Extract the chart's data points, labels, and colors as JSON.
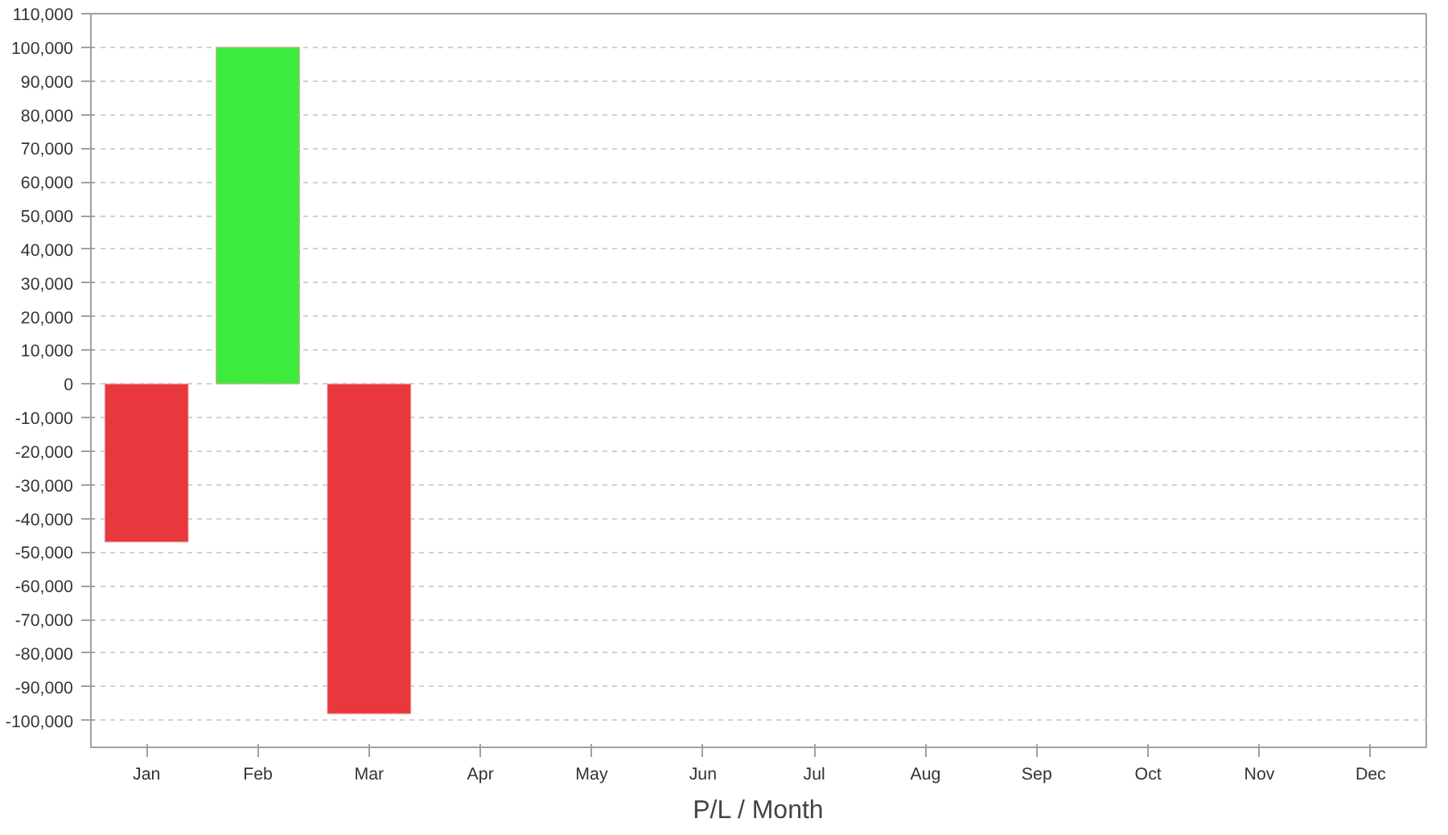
{
  "chart_data": {
    "type": "bar",
    "xlabel": "P/L / Month",
    "categories": [
      "Jan",
      "Feb",
      "Mar",
      "Apr",
      "May",
      "Jun",
      "Jul",
      "Aug",
      "Sep",
      "Oct",
      "Nov",
      "Dec"
    ],
    "values": [
      -47000,
      100000,
      -98000,
      null,
      null,
      null,
      null,
      null,
      null,
      null,
      null,
      null
    ],
    "colors": [
      "#e8383d",
      "#3deb3d",
      "#e8383d",
      null,
      null,
      null,
      null,
      null,
      null,
      null,
      null,
      null
    ],
    "ylim": [
      -108000,
      110000
    ],
    "yticks": [
      {
        "value": -100000,
        "label": "-100,000"
      },
      {
        "value": -90000,
        "label": "-90,000"
      },
      {
        "value": -80000,
        "label": "-80,000"
      },
      {
        "value": -70000,
        "label": "-70,000"
      },
      {
        "value": -60000,
        "label": "-60,000"
      },
      {
        "value": -50000,
        "label": "-50,000"
      },
      {
        "value": -40000,
        "label": "-40,000"
      },
      {
        "value": -30000,
        "label": "-30,000"
      },
      {
        "value": -20000,
        "label": "-20,000"
      },
      {
        "value": -10000,
        "label": "-10,000"
      },
      0,
      {
        "value": 10000,
        "label": "10,000"
      },
      {
        "value": 20000,
        "label": "20,000"
      },
      {
        "value": 30000,
        "label": "30,000"
      },
      {
        "value": 40000,
        "label": "40,000"
      },
      {
        "value": 50000,
        "label": "50,000"
      },
      {
        "value": 60000,
        "label": "60,000"
      },
      {
        "value": 70000,
        "label": "70,000"
      },
      {
        "value": 80000,
        "label": "80,000"
      },
      {
        "value": 90000,
        "label": "90,000"
      },
      {
        "value": 100000,
        "label": "100,000"
      },
      {
        "value": 110000,
        "label": "110,000"
      }
    ],
    "grid": "y"
  }
}
